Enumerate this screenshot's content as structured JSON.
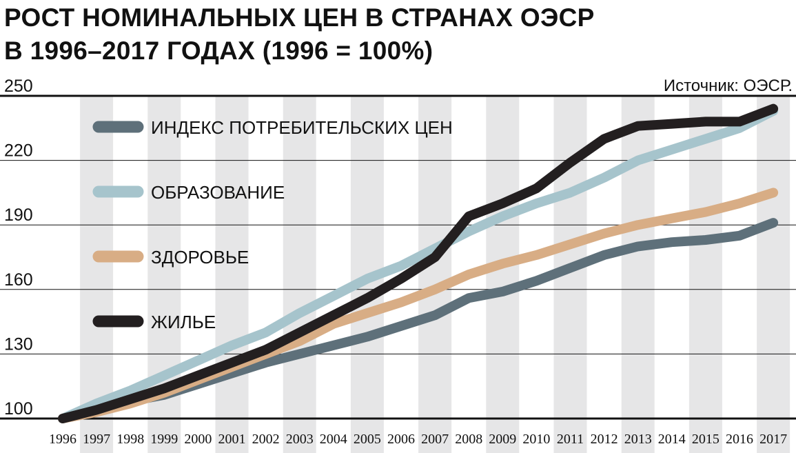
{
  "title_lines": [
    "РОСТ НОМИНАЛЬНЫХ ЦЕН В СТРАНАХ ОЭСР",
    "В 1996–2017 ГОДАХ (1996 = 100%)"
  ],
  "source": "Источник: ОЭСР.",
  "chart_data": {
    "type": "line",
    "title": "РОСТ НОМИНАЛЬНЫХ ЦЕН В СТРАНАХ ОЭСР В 1996–2017 ГОДАХ (1996 = 100%)",
    "xlabel": "",
    "ylabel": "",
    "ylim": [
      100,
      250
    ],
    "yticks": [
      100,
      130,
      160,
      190,
      220,
      250
    ],
    "grid": "horizontal lines, alternating gray vertical bands",
    "legend_position": "top-left",
    "categories": [
      "1996",
      "1997",
      "1998",
      "1999",
      "2000",
      "2001",
      "2002",
      "2003",
      "2004",
      "2005",
      "2006",
      "2007",
      "2008",
      "2009",
      "2010",
      "2011",
      "2012",
      "2013",
      "2014",
      "2015",
      "2016",
      "2017"
    ],
    "series": [
      {
        "name": "ИНДЕКС ПОТРЕБИТЕЛЬСКИХ ЦЕН",
        "color": "#5e707a",
        "values": [
          100,
          104,
          108,
          111,
          116,
          121,
          126,
          130,
          134,
          138,
          143,
          148,
          156,
          159,
          164,
          170,
          176,
          180,
          182,
          183,
          185,
          191
        ]
      },
      {
        "name": "ОБРАЗОВАНИЕ",
        "color": "#a6c4cc",
        "values": [
          100,
          107,
          113,
          120,
          127,
          134,
          140,
          149,
          157,
          165,
          171,
          179,
          187,
          194,
          200,
          205,
          212,
          220,
          225,
          230,
          235,
          243
        ]
      },
      {
        "name": "ЗДОРОВЬЕ",
        "color": "#d8ad85",
        "values": [
          100,
          103,
          107,
          112,
          118,
          124,
          130,
          136,
          144,
          149,
          154,
          160,
          167,
          172,
          176,
          181,
          186,
          190,
          193,
          196,
          200,
          205
        ]
      },
      {
        "name": "ЖИЛЬЕ",
        "color": "#231f20",
        "values": [
          100,
          104,
          109,
          114,
          120,
          126,
          132,
          140,
          148,
          156,
          165,
          175,
          194,
          200,
          207,
          219,
          230,
          236,
          237,
          238,
          238,
          244
        ]
      }
    ]
  }
}
